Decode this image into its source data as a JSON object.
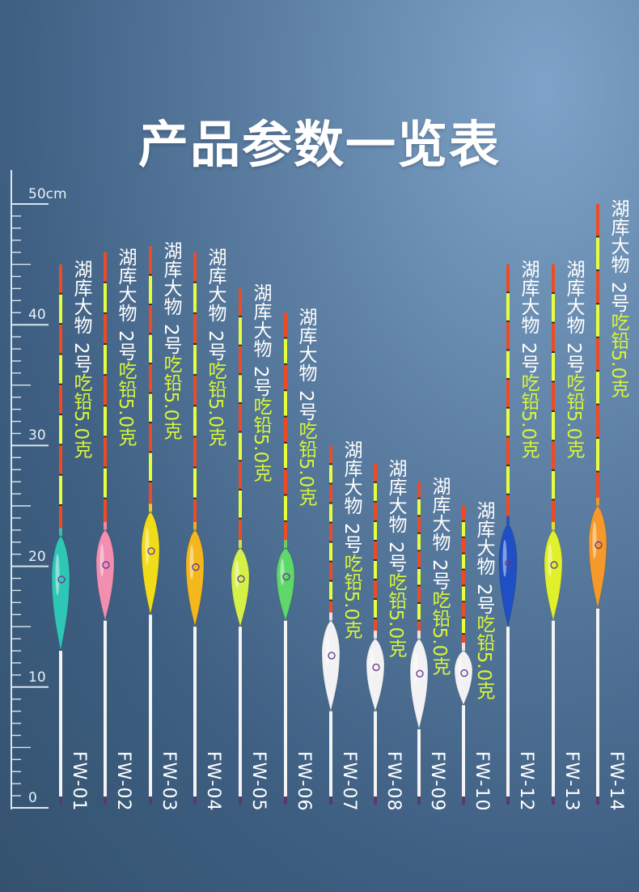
{
  "page": {
    "title": "产品参数一览表"
  },
  "ruler": {
    "labels": [
      "50cm",
      "40",
      "30",
      "20",
      "10",
      "0"
    ],
    "max_cm": 50
  },
  "products": [
    {
      "model": "FW-01",
      "name": "湖库大物",
      "spec_prefix": "2号",
      "spec": "吃铅5.0克",
      "length_cm": 45,
      "body_color": "#2ec7b6",
      "body_top_cm": 22.5,
      "body_bottom_cm": 13
    },
    {
      "model": "FW-02",
      "name": "湖库大物",
      "spec_prefix": "2号",
      "spec": "吃铅5.0克",
      "length_cm": 46,
      "body_color": "#f28fb0",
      "body_top_cm": 23,
      "body_bottom_cm": 15.5
    },
    {
      "model": "FW-03",
      "name": "湖库大物",
      "spec_prefix": "2号",
      "spec": "吃铅5.0克",
      "length_cm": 46.5,
      "body_color": "#f2dc1a",
      "body_top_cm": 24.5,
      "body_bottom_cm": 16
    },
    {
      "model": "FW-04",
      "name": "湖库大物",
      "spec_prefix": "2号",
      "spec": "吃铅5.0克",
      "length_cm": 46,
      "body_color": "#f5b81c",
      "body_top_cm": 23,
      "body_bottom_cm": 15
    },
    {
      "model": "FW-05",
      "name": "湖库大物",
      "spec_prefix": "2号",
      "spec": "吃铅5.0克",
      "length_cm": 43,
      "body_color": "#d6f04a",
      "body_top_cm": 21.5,
      "body_bottom_cm": 15
    },
    {
      "model": "FW-06",
      "name": "湖库大物",
      "spec_prefix": "2号",
      "spec": "吃铅5.0克",
      "length_cm": 41,
      "body_color": "#5fd86a",
      "body_top_cm": 21.5,
      "body_bottom_cm": 15.5
    },
    {
      "model": "FW-07",
      "name": "湖库大物",
      "spec_prefix": "2号",
      "spec": "吃铅5.0克",
      "length_cm": 30,
      "body_color": "#f2f2f4",
      "body_top_cm": 15.5,
      "body_bottom_cm": 8
    },
    {
      "model": "FW-08",
      "name": "湖库大物",
      "spec_prefix": "2号",
      "spec": "吃铅5.0克",
      "length_cm": 28.5,
      "body_color": "#f2f2f4",
      "body_top_cm": 14,
      "body_bottom_cm": 8
    },
    {
      "model": "FW-09",
      "name": "湖库大物",
      "spec_prefix": "2号",
      "spec": "吃铅5.0克",
      "length_cm": 27,
      "body_color": "#f2f2f4",
      "body_top_cm": 14,
      "body_bottom_cm": 6.5
    },
    {
      "model": "FW-10",
      "name": "湖库大物",
      "spec_prefix": "2号",
      "spec": "吃铅5.0克",
      "length_cm": 25,
      "body_color": "#f2f2f4",
      "body_top_cm": 13,
      "body_bottom_cm": 8.5
    },
    {
      "model": "FW-12",
      "name": "湖库大物",
      "spec_prefix": "2号",
      "spec": "吃铅5.0克",
      "length_cm": 45,
      "body_color": "#1f4fc4",
      "body_top_cm": 23.5,
      "body_bottom_cm": 15
    },
    {
      "model": "FW-13",
      "name": "湖库大物",
      "spec_prefix": "2号",
      "spec": "吃铅5.0克",
      "length_cm": 45,
      "body_color": "#e0f02a",
      "body_top_cm": 23,
      "body_bottom_cm": 15.5
    },
    {
      "model": "FW-14",
      "name": "湖库大物",
      "spec_prefix": "2号",
      "spec": "吃铅5.0克",
      "length_cm": 50,
      "body_color": "#f59a2a",
      "body_top_cm": 25,
      "body_bottom_cm": 16.5
    }
  ],
  "colors": {
    "tip_red": "#ee4b25",
    "tip_yellow": "#e6ff3a",
    "tip_dark": "#2a2a3a",
    "stem": "#f4f4f4",
    "spec_text": "#d8f53a"
  }
}
